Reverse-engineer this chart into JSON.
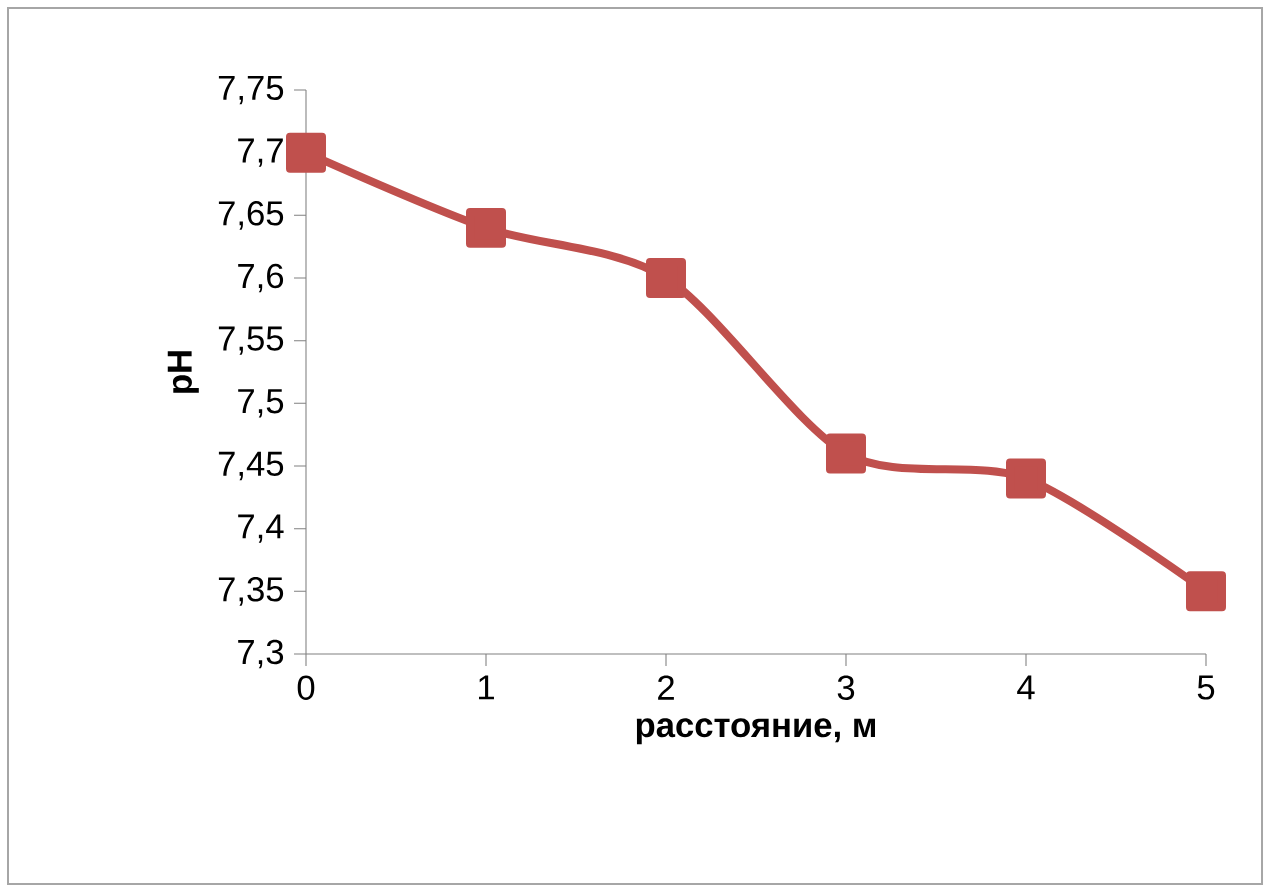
{
  "chart_data": {
    "type": "line",
    "xlabel": "расстояние, м",
    "ylabel": "pH",
    "x": [
      0,
      1,
      2,
      3,
      4,
      5
    ],
    "series": [
      {
        "color": "#c0504d",
        "values": [
          7.7,
          7.64,
          7.6,
          7.46,
          7.44,
          7.35
        ]
      }
    ],
    "xlim": [
      0,
      5
    ],
    "xticks": [
      0,
      1,
      2,
      3,
      4,
      5
    ],
    "ylim": [
      7.3,
      7.75
    ],
    "yticks": [
      {
        "value": 7.3,
        "label": "7,3"
      },
      {
        "value": 7.35,
        "label": "7,35"
      },
      {
        "value": 7.4,
        "label": "7,4"
      },
      {
        "value": 7.45,
        "label": "7,45"
      },
      {
        "value": 7.5,
        "label": "7,5"
      },
      {
        "value": 7.55,
        "label": "7,55"
      },
      {
        "value": 7.6,
        "label": "7,6"
      },
      {
        "value": 7.65,
        "label": "7,65"
      },
      {
        "value": 7.7,
        "label": "7,7"
      },
      {
        "value": 7.75,
        "label": "7,75"
      }
    ],
    "grid": false,
    "marker": "square",
    "line_style": "solid"
  }
}
